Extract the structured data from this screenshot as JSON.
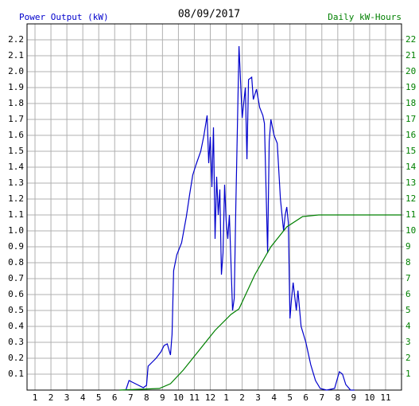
{
  "chart_data": {
    "type": "line",
    "title": "08/09/2017",
    "xlim": [
      0.5,
      24
    ],
    "xticks": [
      1,
      2,
      3,
      4,
      5,
      6,
      7,
      8,
      9,
      10,
      11,
      12,
      {
        "value": 13,
        "label": "1"
      },
      {
        "value": 14,
        "label": "2"
      },
      {
        "value": 15,
        "label": "3"
      },
      {
        "value": 16,
        "label": "4"
      },
      {
        "value": 17,
        "label": "5"
      },
      {
        "value": 18,
        "label": "6"
      },
      {
        "value": 19,
        "label": "7"
      },
      {
        "value": 20,
        "label": "8"
      },
      {
        "value": 21,
        "label": "9"
      },
      {
        "value": 22,
        "label": "10"
      },
      {
        "value": 23,
        "label": "11"
      }
    ],
    "ylim": [
      0,
      2.3
    ],
    "yticks": [
      0.1,
      0.2,
      0.3,
      0.4,
      0.5,
      0.6,
      0.7,
      0.8,
      0.9,
      {
        "value": 1,
        "label": "1.0"
      },
      1.1,
      1.2,
      1.3,
      1.4,
      1.5,
      1.6,
      1.7,
      1.8,
      1.9,
      {
        "value": 2,
        "label": "2.0"
      },
      2.1,
      2.2
    ],
    "y2lim": [
      0,
      23
    ],
    "y2ticks": [
      1,
      2,
      3,
      4,
      5,
      6,
      7,
      8,
      9,
      10,
      11,
      12,
      13,
      14,
      15,
      16,
      17,
      18,
      19,
      20,
      21,
      22
    ],
    "grid": true,
    "series": [
      {
        "name": "Power Output (kW)",
        "color": "#0000cc",
        "x": [
          6.7,
          6.9,
          7.1,
          7.4,
          7.8,
          8.0,
          8.1,
          8.3,
          8.6,
          8.9,
          9.1,
          9.3,
          9.5,
          9.6,
          9.7,
          9.9,
          10.2,
          10.5,
          10.7,
          10.9,
          11.1,
          11.4,
          11.6,
          11.8,
          11.9,
          12.0,
          12.1,
          12.2,
          12.3,
          12.4,
          12.5,
          12.6,
          12.7,
          12.8,
          12.9,
          13.0,
          13.1,
          13.2,
          13.4,
          13.5,
          13.6,
          13.8,
          14.0,
          14.2,
          14.3,
          14.4,
          14.6,
          14.7,
          14.9,
          15.1,
          15.3,
          15.4,
          15.6,
          15.7,
          15.8,
          16.0,
          16.1,
          16.2,
          16.4,
          16.6,
          16.7,
          16.8,
          16.9,
          17.0,
          17.1,
          17.2,
          17.4,
          17.5,
          17.7,
          18.0,
          18.3,
          18.6,
          18.9,
          19.3,
          19.8,
          20.1,
          20.3,
          20.5,
          20.8,
          21.05
        ],
        "values": [
          0.0,
          0.06,
          0.05,
          0.035,
          0.015,
          0.03,
          0.15,
          0.17,
          0.2,
          0.24,
          0.28,
          0.29,
          0.22,
          0.35,
          0.75,
          0.85,
          0.925,
          1.09,
          1.225,
          1.35,
          1.415,
          1.5,
          1.6,
          1.725,
          1.425,
          1.59,
          1.275,
          1.65,
          0.95,
          1.34,
          1.1,
          1.26,
          0.725,
          0.86,
          1.29,
          1.06,
          0.95,
          1.1,
          0.5,
          0.575,
          1.15,
          2.16,
          1.71,
          1.9,
          1.45,
          1.95,
          1.965,
          1.825,
          1.89,
          1.775,
          1.725,
          1.675,
          0.86,
          1.56,
          1.7,
          1.6,
          1.575,
          1.55,
          1.2,
          1.0,
          1.1,
          1.15,
          1.05,
          0.45,
          0.575,
          0.675,
          0.5,
          0.625,
          0.4,
          0.3,
          0.16,
          0.06,
          0.01,
          0.0,
          0.01,
          0.115,
          0.1,
          0.035,
          0.0,
          0.0
        ]
      },
      {
        "name": "Daily kW-Hours",
        "color": "#008000",
        "axis": "y2",
        "x": [
          6.3,
          8.8,
          9.5,
          10.3,
          11.3,
          12.3,
          13.3,
          13.8,
          14.8,
          15.8,
          16.8,
          17.8,
          18.8,
          24
        ],
        "values": [
          0,
          0.1,
          0.4,
          1.25,
          2.5,
          3.75,
          4.75,
          5.1,
          7.25,
          9.0,
          10.25,
          10.9,
          11.0,
          11.0
        ]
      }
    ]
  }
}
